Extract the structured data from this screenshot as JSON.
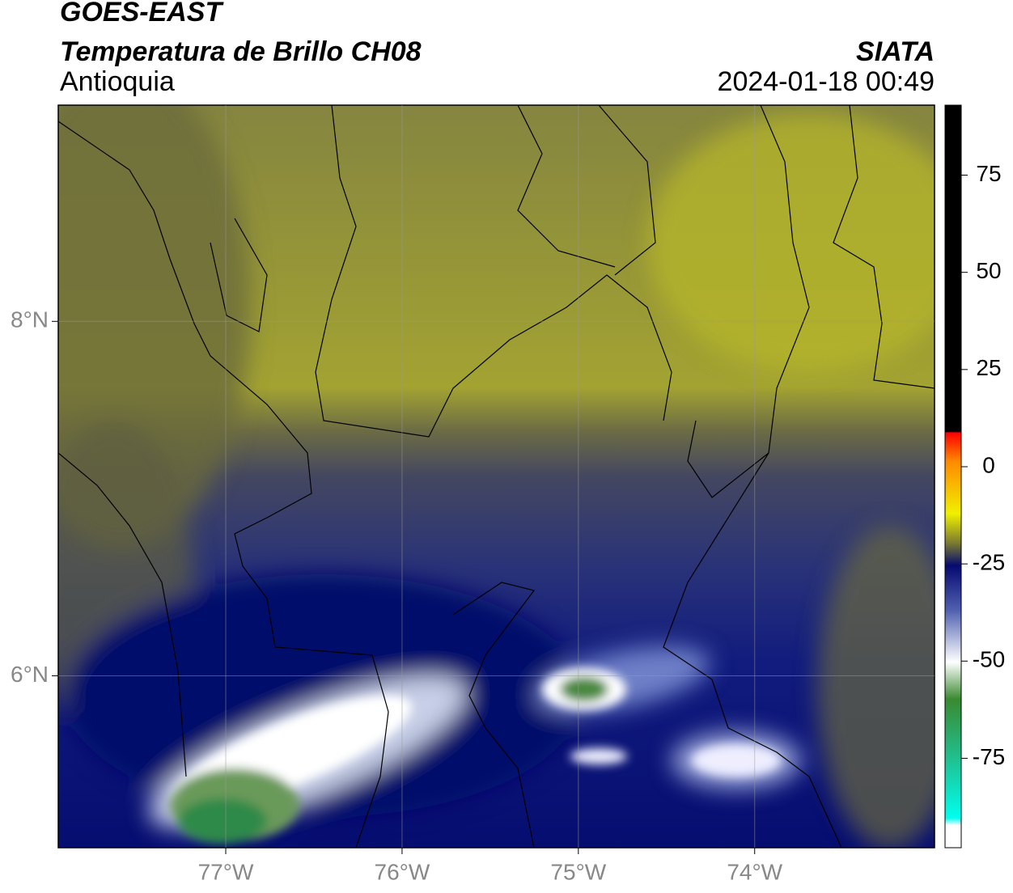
{
  "header": {
    "title": "GOES-EAST",
    "subtitle": "Temperatura de Brillo CH08",
    "region": "Antioquia",
    "source": "SIATA",
    "datetime": "2024-01-18 00:49"
  },
  "map": {
    "lon_lim": [
      -77.95,
      -72.98
    ],
    "lat_lim": [
      5.03,
      9.22
    ],
    "lon_ticks": [
      {
        "value": -77,
        "label": "77°W"
      },
      {
        "value": -76,
        "label": "76°W"
      },
      {
        "value": -75,
        "label": "75°W"
      },
      {
        "value": -74,
        "label": "74°W"
      }
    ],
    "lat_ticks": [
      {
        "value": 8,
        "label": "8°N"
      },
      {
        "value": 6,
        "label": "6°N"
      }
    ],
    "grid": true
  },
  "colorbar": {
    "lim": [
      -98,
      93
    ],
    "ticks": [
      75,
      50,
      25,
      0,
      -25,
      -50,
      -75
    ]
  }
}
